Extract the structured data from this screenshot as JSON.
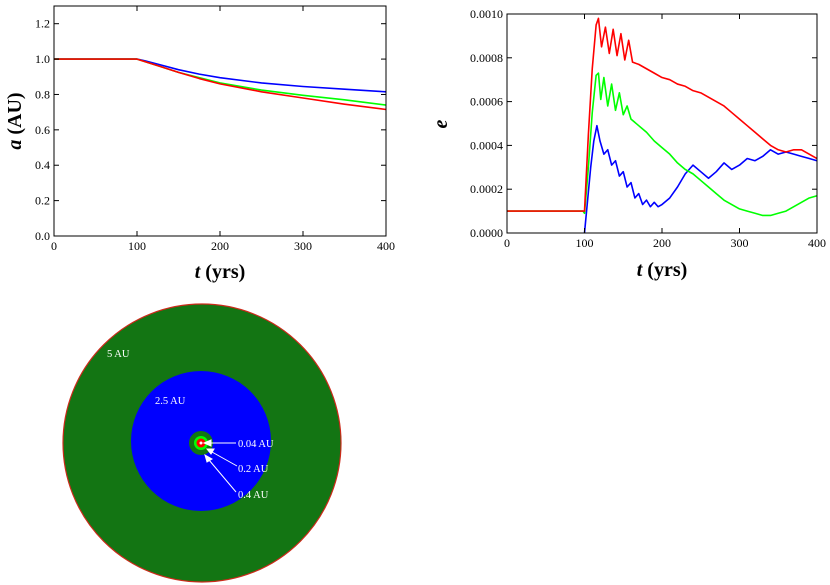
{
  "chart_data": [
    {
      "type": "line",
      "xlabel_var": "t",
      "xlabel_unit": "(yrs)",
      "ylabel_var": "a",
      "ylabel_unit": "(AU)",
      "xlim": [
        0,
        400
      ],
      "ylim": [
        0,
        1.3
      ],
      "xticks": [
        0,
        100,
        200,
        300,
        400
      ],
      "yticks": [
        0.0,
        0.2,
        0.4,
        0.6,
        0.8,
        1.0,
        1.2
      ],
      "ytick_labels": [
        "0.0",
        "0.2",
        "0.4",
        "0.6",
        "0.8",
        "1.0",
        "1.2"
      ],
      "series": [
        {
          "name": "blue",
          "color": "#0000ff",
          "x": [
            0,
            100,
            110,
            130,
            150,
            175,
            200,
            250,
            300,
            350,
            400
          ],
          "y": [
            1.0,
            1.0,
            0.99,
            0.965,
            0.94,
            0.915,
            0.895,
            0.865,
            0.845,
            0.83,
            0.815
          ]
        },
        {
          "name": "green",
          "color": "#00ff00",
          "x": [
            0,
            100,
            110,
            130,
            150,
            175,
            200,
            250,
            300,
            350,
            400
          ],
          "y": [
            1.0,
            1.0,
            0.985,
            0.955,
            0.925,
            0.895,
            0.865,
            0.825,
            0.795,
            0.77,
            0.74
          ]
        },
        {
          "name": "red",
          "color": "#ff0000",
          "x": [
            0,
            100,
            110,
            130,
            150,
            175,
            200,
            250,
            300,
            350,
            400
          ],
          "y": [
            1.0,
            1.0,
            0.985,
            0.955,
            0.925,
            0.89,
            0.86,
            0.815,
            0.78,
            0.745,
            0.715
          ]
        }
      ]
    },
    {
      "type": "line",
      "xlabel_var": "t",
      "xlabel_unit": "(yrs)",
      "ylabel_var": "e",
      "xlim": [
        0,
        400
      ],
      "ylim": [
        0,
        0.001
      ],
      "xticks": [
        0,
        100,
        200,
        300,
        400
      ],
      "yticks": [
        0,
        0.0002,
        0.0004,
        0.0006,
        0.0008,
        0.001
      ],
      "ytick_labels": [
        "0.0000",
        "0.0002",
        "0.0004",
        "0.0006",
        "0.0008",
        "0.0010"
      ],
      "series": [
        {
          "name": "blue",
          "color": "#0000ff",
          "x": [
            0,
            98,
            100,
            104,
            108,
            112,
            116,
            120,
            125,
            130,
            135,
            140,
            145,
            150,
            155,
            160,
            165,
            170,
            175,
            180,
            185,
            190,
            195,
            200,
            210,
            220,
            230,
            240,
            250,
            260,
            270,
            280,
            290,
            300,
            310,
            320,
            330,
            340,
            350,
            360,
            370,
            380,
            390,
            400
          ],
          "y": [
            null,
            null,
            0.0,
            0.00015,
            0.0003,
            0.00042,
            0.00049,
            0.00042,
            0.00036,
            0.00038,
            0.00031,
            0.00033,
            0.00026,
            0.00028,
            0.00021,
            0.00023,
            0.00016,
            0.00018,
            0.00013,
            0.00015,
            0.00012,
            0.00014,
            0.00012,
            0.00013,
            0.00016,
            0.00021,
            0.00027,
            0.00031,
            0.00028,
            0.00025,
            0.00028,
            0.00032,
            0.00029,
            0.00031,
            0.00034,
            0.00033,
            0.00035,
            0.00038,
            0.00036,
            0.00037,
            0.00036,
            0.00035,
            0.00034,
            0.00033
          ]
        },
        {
          "name": "green",
          "color": "#00ff00",
          "x": [
            0,
            98,
            100,
            105,
            110,
            115,
            118,
            121,
            125,
            130,
            135,
            140,
            145,
            150,
            155,
            160,
            170,
            180,
            190,
            200,
            210,
            220,
            230,
            240,
            250,
            260,
            270,
            280,
            290,
            300,
            310,
            320,
            330,
            340,
            350,
            360,
            370,
            380,
            390,
            400
          ],
          "y": [
            0.0001,
            0.0001,
            9e-05,
            0.0003,
            0.00055,
            0.00072,
            0.00073,
            0.00061,
            0.00071,
            0.00058,
            0.00068,
            0.00056,
            0.00064,
            0.00054,
            0.00058,
            0.00052,
            0.00049,
            0.00046,
            0.00042,
            0.00039,
            0.00036,
            0.00032,
            0.00029,
            0.00027,
            0.00024,
            0.00021,
            0.00018,
            0.00015,
            0.00013,
            0.00011,
            0.0001,
            9e-05,
            8e-05,
            8e-05,
            9e-05,
            0.0001,
            0.00012,
            0.00014,
            0.00016,
            0.00017
          ]
        },
        {
          "name": "red",
          "color": "#ff0000",
          "x": [
            0,
            98,
            100,
            105,
            110,
            115,
            118,
            122,
            127,
            132,
            137,
            142,
            147,
            152,
            157,
            162,
            170,
            180,
            190,
            200,
            210,
            220,
            230,
            240,
            250,
            260,
            270,
            280,
            290,
            300,
            310,
            320,
            330,
            340,
            350,
            360,
            370,
            380,
            390,
            400
          ],
          "y": [
            0.0001,
            0.0001,
            0.0001,
            0.00045,
            0.00075,
            0.00095,
            0.00098,
            0.00085,
            0.00094,
            0.00082,
            0.00093,
            0.00081,
            0.00091,
            0.00079,
            0.00088,
            0.00078,
            0.00077,
            0.00075,
            0.00073,
            0.00071,
            0.0007,
            0.00068,
            0.00067,
            0.00065,
            0.00064,
            0.00062,
            0.0006,
            0.00058,
            0.00055,
            0.00052,
            0.00049,
            0.00046,
            0.00043,
            0.0004,
            0.00038,
            0.00037,
            0.00038,
            0.00038,
            0.00036,
            0.00034
          ]
        }
      ]
    }
  ],
  "disk_diagram": {
    "rings": [
      {
        "label": "5 AU",
        "color": "#137513",
        "edge": "#cc2a1a"
      },
      {
        "label": "2.5 AU",
        "color": "#0000ff"
      },
      {
        "label": "0.4 AU",
        "color": "#137513"
      },
      {
        "label": "0.2 AU",
        "color": "#00ff00"
      },
      {
        "label": "0.04 AU",
        "color": "#ff0000"
      }
    ],
    "center_color": "#ffffff"
  }
}
